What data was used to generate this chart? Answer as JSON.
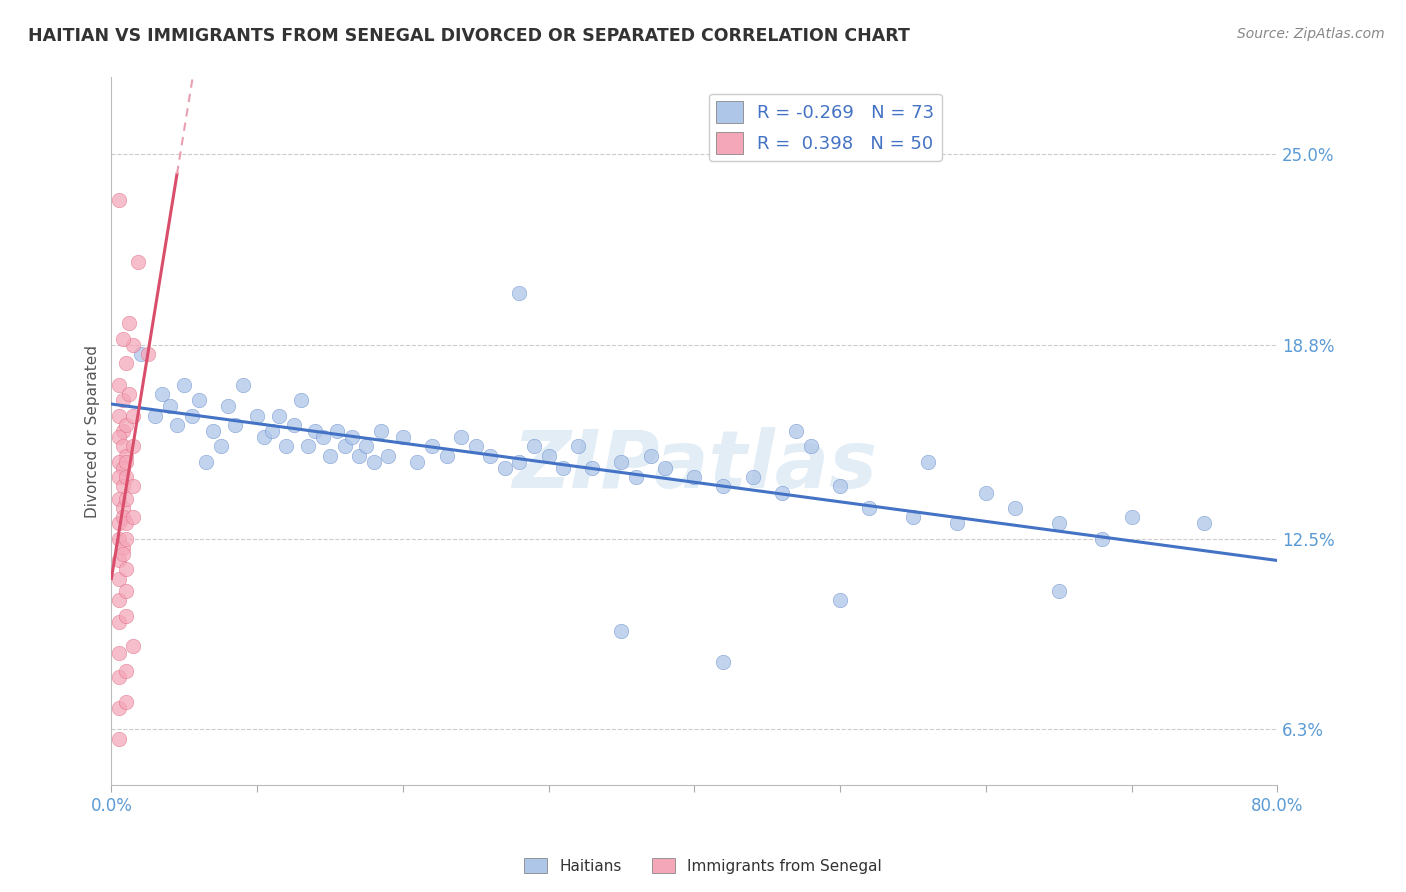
{
  "title": "HAITIAN VS IMMIGRANTS FROM SENEGAL DIVORCED OR SEPARATED CORRELATION CHART",
  "source": "Source: ZipAtlas.com",
  "ylabel": "Divorced or Separated",
  "xlim": [
    0.0,
    80.0
  ],
  "ylim": [
    4.5,
    27.5
  ],
  "yticks": [
    6.3,
    12.5,
    18.8,
    25.0
  ],
  "ytick_labels": [
    "6.3%",
    "12.5%",
    "18.8%",
    "25.0%"
  ],
  "blue_color": "#aec6e8",
  "pink_color": "#f4a7b9",
  "blue_line_color": "#4472c4",
  "pink_line_color": "#d94f6b",
  "pink_dash_color": "#e8a0b0",
  "R_blue": -0.269,
  "N_blue": 73,
  "R_pink": 0.398,
  "N_pink": 50,
  "watermark": "ZIPatlas",
  "background_color": "#ffffff",
  "blue_scatter": [
    [
      2.0,
      18.5
    ],
    [
      3.5,
      17.2
    ],
    [
      4.0,
      16.8
    ],
    [
      4.5,
      16.2
    ],
    [
      5.0,
      17.5
    ],
    [
      5.5,
      16.5
    ],
    [
      6.0,
      17.0
    ],
    [
      7.0,
      16.0
    ],
    [
      7.5,
      15.5
    ],
    [
      8.0,
      16.8
    ],
    [
      8.5,
      16.2
    ],
    [
      9.0,
      17.5
    ],
    [
      10.0,
      16.5
    ],
    [
      10.5,
      15.8
    ],
    [
      11.0,
      16.0
    ],
    [
      11.5,
      16.5
    ],
    [
      12.0,
      15.5
    ],
    [
      12.5,
      16.2
    ],
    [
      13.0,
      17.0
    ],
    [
      13.5,
      15.5
    ],
    [
      14.0,
      16.0
    ],
    [
      14.5,
      15.8
    ],
    [
      15.0,
      15.2
    ],
    [
      15.5,
      16.0
    ],
    [
      16.0,
      15.5
    ],
    [
      16.5,
      15.8
    ],
    [
      17.0,
      15.2
    ],
    [
      17.5,
      15.5
    ],
    [
      18.0,
      15.0
    ],
    [
      18.5,
      16.0
    ],
    [
      19.0,
      15.2
    ],
    [
      20.0,
      15.8
    ],
    [
      21.0,
      15.0
    ],
    [
      22.0,
      15.5
    ],
    [
      23.0,
      15.2
    ],
    [
      24.0,
      15.8
    ],
    [
      25.0,
      15.5
    ],
    [
      26.0,
      15.2
    ],
    [
      27.0,
      14.8
    ],
    [
      28.0,
      15.0
    ],
    [
      29.0,
      15.5
    ],
    [
      30.0,
      15.2
    ],
    [
      31.0,
      14.8
    ],
    [
      32.0,
      15.5
    ],
    [
      33.0,
      14.8
    ],
    [
      35.0,
      15.0
    ],
    [
      36.0,
      14.5
    ],
    [
      37.0,
      15.2
    ],
    [
      38.0,
      14.8
    ],
    [
      40.0,
      14.5
    ],
    [
      42.0,
      14.2
    ],
    [
      44.0,
      14.5
    ],
    [
      46.0,
      14.0
    ],
    [
      47.0,
      16.0
    ],
    [
      48.0,
      15.5
    ],
    [
      50.0,
      14.2
    ],
    [
      52.0,
      13.5
    ],
    [
      55.0,
      13.2
    ],
    [
      56.0,
      15.0
    ],
    [
      58.0,
      13.0
    ],
    [
      60.0,
      14.0
    ],
    [
      62.0,
      13.5
    ],
    [
      65.0,
      13.0
    ],
    [
      68.0,
      12.5
    ],
    [
      70.0,
      13.2
    ],
    [
      28.0,
      20.5
    ],
    [
      35.0,
      9.5
    ],
    [
      42.0,
      8.5
    ],
    [
      50.0,
      10.5
    ],
    [
      65.0,
      10.8
    ],
    [
      75.0,
      13.0
    ],
    [
      3.0,
      16.5
    ],
    [
      6.5,
      15.0
    ]
  ],
  "pink_scatter": [
    [
      0.5,
      23.5
    ],
    [
      1.8,
      21.5
    ],
    [
      2.5,
      18.5
    ],
    [
      1.2,
      19.5
    ],
    [
      1.5,
      18.8
    ],
    [
      0.8,
      19.0
    ],
    [
      1.0,
      18.2
    ],
    [
      0.5,
      17.5
    ],
    [
      0.8,
      17.0
    ],
    [
      1.2,
      17.2
    ],
    [
      0.5,
      16.5
    ],
    [
      0.8,
      16.0
    ],
    [
      1.0,
      16.2
    ],
    [
      1.5,
      16.5
    ],
    [
      0.5,
      15.8
    ],
    [
      0.8,
      15.5
    ],
    [
      1.0,
      15.2
    ],
    [
      1.5,
      15.5
    ],
    [
      0.5,
      15.0
    ],
    [
      0.8,
      14.8
    ],
    [
      1.0,
      15.0
    ],
    [
      0.5,
      14.5
    ],
    [
      0.8,
      14.2
    ],
    [
      1.0,
      14.5
    ],
    [
      1.5,
      14.2
    ],
    [
      0.5,
      13.8
    ],
    [
      0.8,
      13.5
    ],
    [
      1.0,
      13.8
    ],
    [
      0.5,
      13.0
    ],
    [
      0.8,
      13.2
    ],
    [
      1.0,
      13.0
    ],
    [
      1.5,
      13.2
    ],
    [
      0.5,
      12.5
    ],
    [
      0.8,
      12.2
    ],
    [
      1.0,
      12.5
    ],
    [
      0.5,
      11.8
    ],
    [
      0.8,
      12.0
    ],
    [
      0.5,
      11.2
    ],
    [
      1.0,
      11.5
    ],
    [
      0.5,
      10.5
    ],
    [
      1.0,
      10.8
    ],
    [
      0.5,
      9.8
    ],
    [
      1.0,
      10.0
    ],
    [
      0.5,
      8.8
    ],
    [
      1.5,
      9.0
    ],
    [
      0.5,
      8.0
    ],
    [
      1.0,
      8.2
    ],
    [
      0.5,
      7.0
    ],
    [
      1.0,
      7.2
    ],
    [
      0.5,
      6.0
    ]
  ]
}
